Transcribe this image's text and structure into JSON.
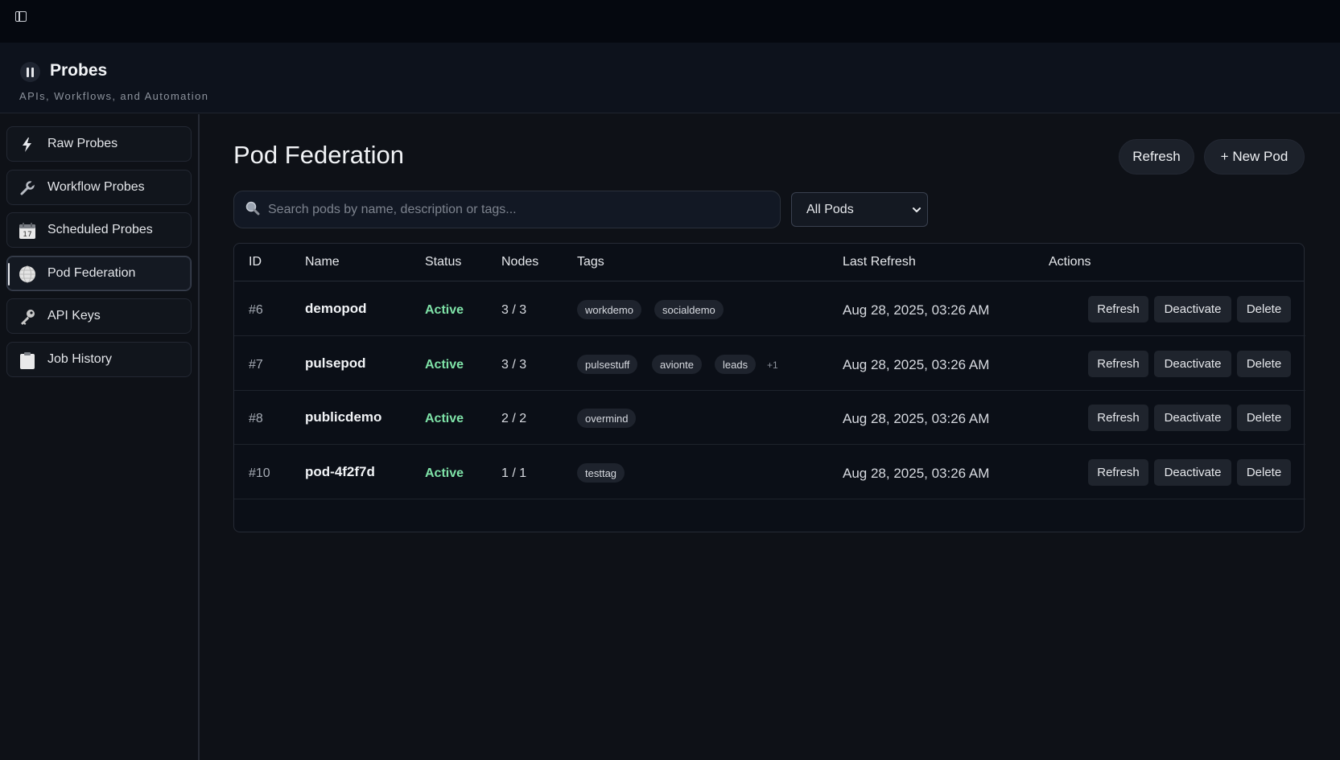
{
  "brand": {
    "title": "Probes",
    "subtitle": "APIs, Workflows, and Automation"
  },
  "sidebar": {
    "items": [
      {
        "label": "Raw Probes",
        "icon": "lightning-icon"
      },
      {
        "label": "Workflow Probes",
        "icon": "wrench-icon"
      },
      {
        "label": "Scheduled Probes",
        "icon": "calendar-icon"
      },
      {
        "label": "Pod Federation",
        "icon": "globe-icon",
        "active": true
      },
      {
        "label": "API Keys",
        "icon": "key-icon"
      },
      {
        "label": "Job History",
        "icon": "clipboard-icon"
      }
    ]
  },
  "main": {
    "title": "Pod Federation",
    "refresh_label": "Refresh",
    "new_pod_label": "+ New Pod",
    "search_placeholder": "Search pods by name, description or tags...",
    "filter_value": "All Pods"
  },
  "table": {
    "headers": [
      "ID",
      "Name",
      "Status",
      "Nodes",
      "Tags",
      "Last Refresh",
      "Actions"
    ],
    "rows": [
      {
        "id": "#6",
        "name": "demopod",
        "status": "Active",
        "nodes": "3 / 3",
        "tags": [
          "workdemo",
          "socialdemo"
        ],
        "more": "",
        "last_refresh": "Aug 28, 2025, 03:26 AM"
      },
      {
        "id": "#7",
        "name": "pulsepod",
        "status": "Active",
        "nodes": "3 / 3",
        "tags": [
          "pulsestuff",
          "avionte",
          "leads"
        ],
        "more": "+1",
        "last_refresh": "Aug 28, 2025, 03:26 AM"
      },
      {
        "id": "#8",
        "name": "publicdemo",
        "status": "Active",
        "nodes": "2 / 2",
        "tags": [
          "overmind"
        ],
        "more": "",
        "last_refresh": "Aug 28, 2025, 03:26 AM"
      },
      {
        "id": "#10",
        "name": "pod-4f2f7d",
        "status": "Active",
        "nodes": "1 / 1",
        "tags": [
          "testtag"
        ],
        "more": "",
        "last_refresh": "Aug 28, 2025, 03:26 AM"
      }
    ],
    "actions": {
      "refresh": "Refresh",
      "deactivate": "Deactivate",
      "delete": "Delete"
    }
  },
  "colors": {
    "status_active": "#7fe3a8",
    "background": "#0e1117"
  }
}
